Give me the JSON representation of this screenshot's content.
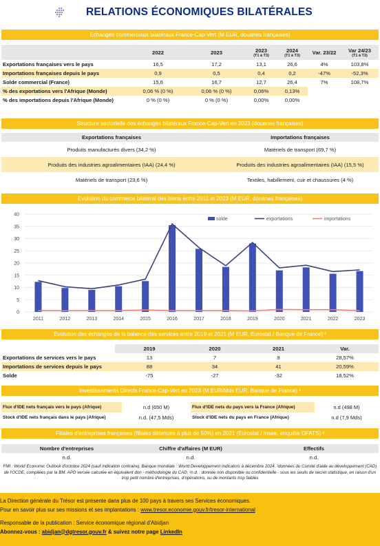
{
  "title": "RELATIONS ÉCONOMIQUES BILATÉRALES",
  "sections": {
    "trade": "Echanges commerciaux bilatéraux France-Cap-Vert (M EUR, douanes françaises)",
    "structure": "Structure sectorielle des échanges bilatéraux France-Cap-Vert en 2023 (douanes françaises)",
    "evolution": "Evolution du commerce bilatéral des biens entre 2011 et 2023 (M EUR, douanes françaises)",
    "services": "Evolution des échanges de la balance des services entre 2019 et 2021 (M EUR, Eurostat / Banque de France) ²",
    "ide": "Investissements Directs France-Cap-Vert en 2023 (M EUR/Mds EUR, Banque de France) ²",
    "filiales": "Filiales d'entreprises françaises (filiales détenues à plus de 50%) en 2021 (Eurostat / Insee, enquête OFATS) ²"
  },
  "trade_table": {
    "headers": [
      "2022",
      "2023",
      "2023",
      "2024",
      "Var. 23/22",
      "Var 24/23"
    ],
    "subheaders": [
      "",
      "",
      "(T1 à T3)",
      "(T1 à T3)",
      "",
      "(T1 à T3)"
    ],
    "rows": [
      {
        "label": "Exportations françaises vers le pays",
        "values": [
          "16,5",
          "17,2",
          "13,1",
          "26,6",
          "4%",
          "103,8%"
        ]
      },
      {
        "label": "Importations françaises depuis le pays",
        "values": [
          "0,9",
          "0,5",
          "0,4",
          "0,2",
          "-47%",
          "-52,3%"
        ]
      },
      {
        "label": "Solde commercial (France)",
        "values": [
          "15,6",
          "16,7",
          "12,7",
          "26,4",
          "7%",
          "108,7%"
        ]
      },
      {
        "label": "% des exportations vers l'Afrique (Monde)",
        "values": [
          "0,06 % (0 %)",
          "0,06 % (0 %)",
          "0,06%",
          "0,13%",
          "",
          ""
        ]
      },
      {
        "label": "% des importations depuis l'Afrique (Monde)",
        "values": [
          "0 % (0 %)",
          "0 % (0 %)",
          "0,00%",
          "0,00%",
          "",
          ""
        ]
      }
    ]
  },
  "structure_table": {
    "headers": [
      "Exportations françaises",
      "Importations françaises"
    ],
    "rows": [
      [
        "Produits manufacturés divers (34,2 %)",
        "Matériels de transport (69,7 %)"
      ],
      [
        "Produits des industries agroalimentaires (IAA) (24,4 %)",
        "Produits des industries agroalimentaires (IAA) (15,5 %)"
      ],
      [
        "Matériels de transport (23,6 %)",
        "Textiles, habillement, cuir et chaussures (4 %)"
      ]
    ]
  },
  "chart_data": {
    "type": "bar",
    "categories": [
      "2011",
      "2012",
      "2013",
      "2014",
      "2015",
      "2016",
      "2017",
      "2018",
      "2019",
      "2020",
      "2021",
      "2022",
      "2023"
    ],
    "series": [
      {
        "name": "solde",
        "type": "bar",
        "color": "#3f51b5",
        "values": [
          12.3,
          9.8,
          9.0,
          10.5,
          12.6,
          35.5,
          25.8,
          18.4,
          28.0,
          17.0,
          18.2,
          15.6,
          16.7
        ]
      },
      {
        "name": "exportations",
        "type": "line",
        "color": "#3d3f80",
        "values": [
          12.8,
          10.3,
          9.5,
          11.0,
          13.4,
          36.0,
          26.3,
          18.9,
          28.4,
          18.0,
          19.1,
          16.5,
          17.2
        ]
      },
      {
        "name": "importations",
        "type": "line",
        "color": "#f08070",
        "values": [
          0.5,
          0.5,
          0.5,
          0.5,
          0.8,
          0.5,
          0.5,
          0.5,
          0.4,
          1.0,
          0.9,
          0.9,
          0.5
        ]
      }
    ],
    "yticks": [
      "0",
      "5",
      "10",
      "15",
      "20",
      "25",
      "30",
      "35",
      "40"
    ],
    "ylim": [
      0,
      40
    ],
    "legend_position": "top-right",
    "grid": true
  },
  "services_table": {
    "headers": [
      "2019",
      "2020",
      "2021",
      "Var."
    ],
    "rows": [
      {
        "label": "Exportations de services vers le pays",
        "values": [
          "13",
          "7",
          "9",
          "28,57%"
        ]
      },
      {
        "label": "Importations de services depuis le pays",
        "values": [
          "88",
          "34",
          "41",
          "20,59%"
        ]
      },
      {
        "label": "Solde",
        "values": [
          "-75",
          "-27",
          "-32",
          "18,52%"
        ]
      }
    ]
  },
  "ide_table": {
    "rows": [
      {
        "label1": "Flux d'IDE nets français vers le pays (Afrique)",
        "value1": "n.d (650 M)",
        "label2": "Flux d'IDE nets du pays vers la France (Afrique)",
        "value2": "n.d (498 M)"
      },
      {
        "label1": "Stock d'IDE nets français dans le pays (Afrique)",
        "value1": "n.d. (47,5 Mds)",
        "label2": "Stock d'IDE nets du pays  en France (Afrique)",
        "value2": "n.d (7,9 Mds)"
      }
    ]
  },
  "filiales_table": {
    "headers": [
      "Nombre d'entreprises",
      "Chiffre d'affaires (M EUR)",
      "Effectifs"
    ],
    "values": [
      "n.d.",
      "n.d.",
      "n.d."
    ]
  },
  "footnote": "FMI : World Economic Outlook d'octobre 2024 (sauf indication contraire), Banque mondiale : World Developpement Indicators à décembre 2024. ¹données du Comité d'aide au développement (CAD) de l'OCDE, compilées par la BM. APD versée calculée en équivalent don - méthodologie du CAD. ²n.d. : donnée non disponible ou confidentielle - sous les seuils de secret statistique, en raison d'un trop petit nombre d'entreprises, d'opérations, ou de montants trop faibles",
  "footer": {
    "line1": "La Direction générale du Trésor est présente dans plus de 100 pays à travers ses Services économiques.",
    "line2_prefix": "Pour en savoir plus sur ses missions et ses implantations : ",
    "line2_link": "www.tresor.economie.gouv.fr/tresor-international",
    "line3": "Responsable de la publication : Service économique régional d'Abidjan",
    "line4_prefix": "Abonnez-vous : ",
    "line4_email": "abidjan@dgtresor.gouv.fr",
    "line4_mid": " & suivez notre page ",
    "line4_link": "LinkedIn"
  }
}
